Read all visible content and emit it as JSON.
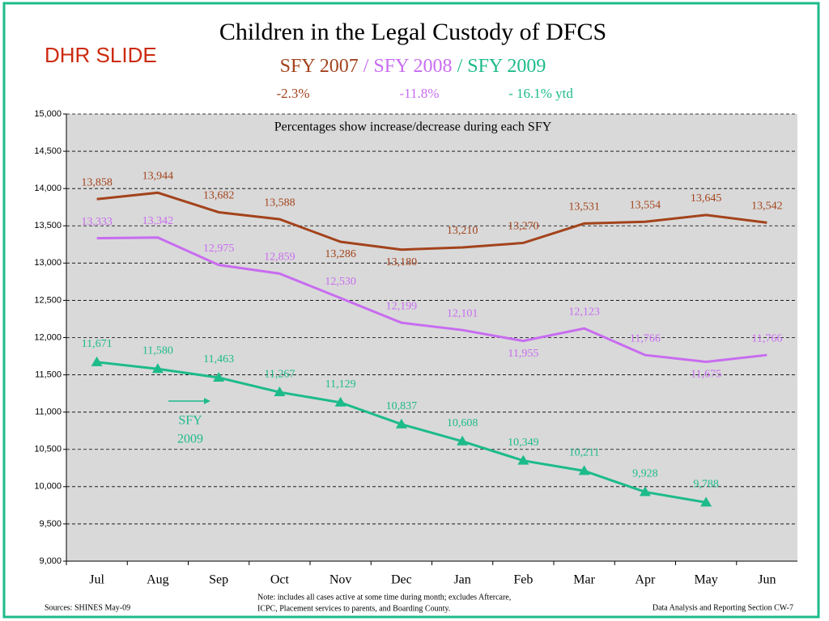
{
  "chart_data": {
    "type": "line",
    "title": "Children in the Legal Custody of DFCS",
    "tag": "DHR SLIDE",
    "legend_separator": "/",
    "series_changes": [
      "-2.3%",
      "-11.8%",
      "- 16.1% ytd"
    ],
    "note": "Percentages show increase/decrease during each SFY",
    "annotation": [
      "SFY",
      "2009"
    ],
    "footer_source": "Sources: SHINES    May-09",
    "footer_note": [
      "Note:  includes all cases active at some time during month; excludes Aftercare,",
      "ICPC, Placement services to parents, and Boarding County."
    ],
    "footer_section": "Data Analysis and Reporting Section CW-7",
    "categories": [
      "Jul",
      "Aug",
      "Sep",
      "Oct",
      "Nov",
      "Dec",
      "Jan",
      "Feb",
      "Mar",
      "Apr",
      "May",
      "Jun"
    ],
    "series": [
      {
        "name": "SFY 2007",
        "color": "#a3431c",
        "values": [
          13858,
          13944,
          13682,
          13588,
          13286,
          13180,
          13210,
          13270,
          13531,
          13554,
          13645,
          13542
        ],
        "value_labels": [
          "13,858",
          "13,944",
          "13,682",
          "13,588",
          "13,286",
          "13,180",
          "13,210",
          "13,270",
          "13,531",
          "13,554",
          "13,645",
          "13,542"
        ]
      },
      {
        "name": "SFY 2008",
        "color": "#c86cf0",
        "values": [
          13333,
          13342,
          12975,
          12859,
          12530,
          12199,
          12101,
          11955,
          12123,
          11766,
          11675,
          11766
        ],
        "value_labels": [
          "13,333",
          "13,342",
          "12,975",
          "12,859",
          "12,530",
          "12,199",
          "12,101",
          "11,955",
          "12,123",
          "11,766",
          "11,675",
          "11,766"
        ]
      },
      {
        "name": "SFY 2009",
        "color": "#1dbb8a",
        "marker": "triangle",
        "values": [
          11671,
          11580,
          11463,
          11267,
          11129,
          10837,
          10608,
          10349,
          10211,
          9928,
          9788,
          null
        ],
        "value_labels": [
          "11,671",
          "11,580",
          "11,463",
          "11,267",
          "11,129",
          "10,837",
          "10,608",
          "10,349",
          "10,211",
          "9,928",
          "9,788",
          null
        ]
      }
    ],
    "ylim": [
      9000,
      15000
    ],
    "yticks": [
      {
        "value": 9000,
        "label": "9,000"
      },
      {
        "value": 9500,
        "label": "9,500"
      },
      {
        "value": 10000,
        "label": "10,000"
      },
      {
        "value": 10500,
        "label": "10,500"
      },
      {
        "value": 11000,
        "label": "11,000"
      },
      {
        "value": 11500,
        "label": "11,500"
      },
      {
        "value": 12000,
        "label": "12,000"
      },
      {
        "value": 12500,
        "label": "12,500"
      },
      {
        "value": 13000,
        "label": "13,000"
      },
      {
        "value": 13500,
        "label": "13,500"
      },
      {
        "value": 14000,
        "label": "14,000"
      },
      {
        "value": 14500,
        "label": "14,500"
      },
      {
        "value": 15000,
        "label": "15,000"
      }
    ],
    "grid": true
  }
}
